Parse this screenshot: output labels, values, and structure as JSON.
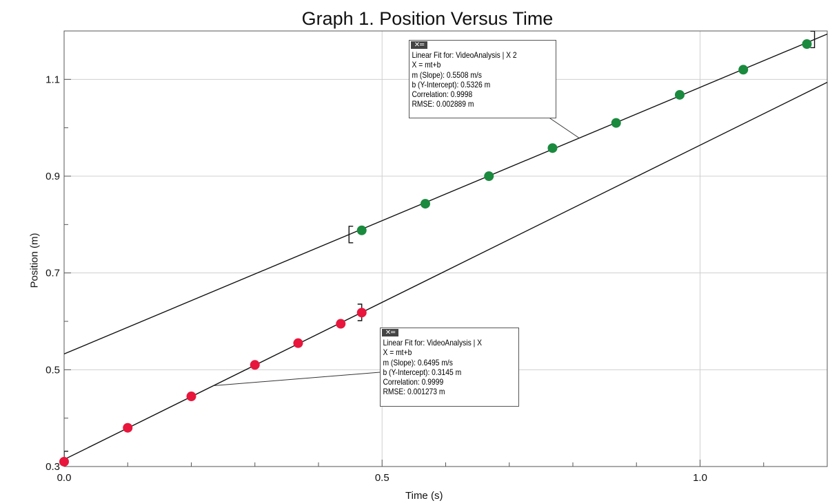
{
  "chart_data": {
    "type": "scatter",
    "title": "Graph 1. Position Versus Time",
    "xlabel": "Time (s)",
    "ylabel": "Position (m)",
    "xlim": [
      0.0,
      1.2
    ],
    "ylim": [
      0.3,
      1.2
    ],
    "x_ticks": [
      0.0,
      0.5,
      1.0
    ],
    "y_ticks": [
      0.3,
      0.5,
      0.7,
      0.9,
      1.1
    ],
    "x_tick_labels": [
      "0.0",
      "0.5",
      "1.0"
    ],
    "y_tick_labels": [
      "0.3",
      "0.5",
      "0.7",
      "0.9",
      "1.1"
    ],
    "grid": true,
    "series": [
      {
        "name": "VideoAnalysis | X",
        "color": "#e8163c",
        "x": [
          0.0,
          0.1,
          0.2,
          0.3,
          0.368,
          0.435,
          0.468
        ],
        "y": [
          0.31,
          0.38,
          0.445,
          0.51,
          0.555,
          0.595,
          0.618
        ]
      },
      {
        "name": "VideoAnalysis | X 2",
        "color": "#1a8a3e",
        "x": [
          0.468,
          0.568,
          0.668,
          0.768,
          0.868,
          0.968,
          1.068,
          1.168
        ],
        "y": [
          0.788,
          0.843,
          0.9,
          0.958,
          1.01,
          1.068,
          1.12,
          1.173
        ]
      }
    ],
    "fits": [
      {
        "name": "fit-x",
        "slope": 0.6495,
        "intercept": 0.3145,
        "bracket_x": [
          0.0,
          0.468
        ],
        "lines": [
          "Linear Fit for: VideoAnalysis | X",
          "X = mt+b",
          "m (Slope): 0.6495 m/s",
          "b (Y-Intercept): 0.3145 m",
          "Correlation: 0.9999",
          "RMSE: 0.001273 m"
        ]
      },
      {
        "name": "fit-x2",
        "slope": 0.5508,
        "intercept": 0.5326,
        "bracket_x": [
          0.448,
          1.18
        ],
        "lines": [
          "Linear Fit for: VideoAnalysis | X 2",
          "X = mt+b",
          "m (Slope): 0.5508 m/s",
          "b (Y-Intercept): 0.5326 m",
          "Correlation: 0.9998",
          "RMSE: 0.002889 m"
        ]
      }
    ]
  },
  "fit_box_icon": "close-icon"
}
